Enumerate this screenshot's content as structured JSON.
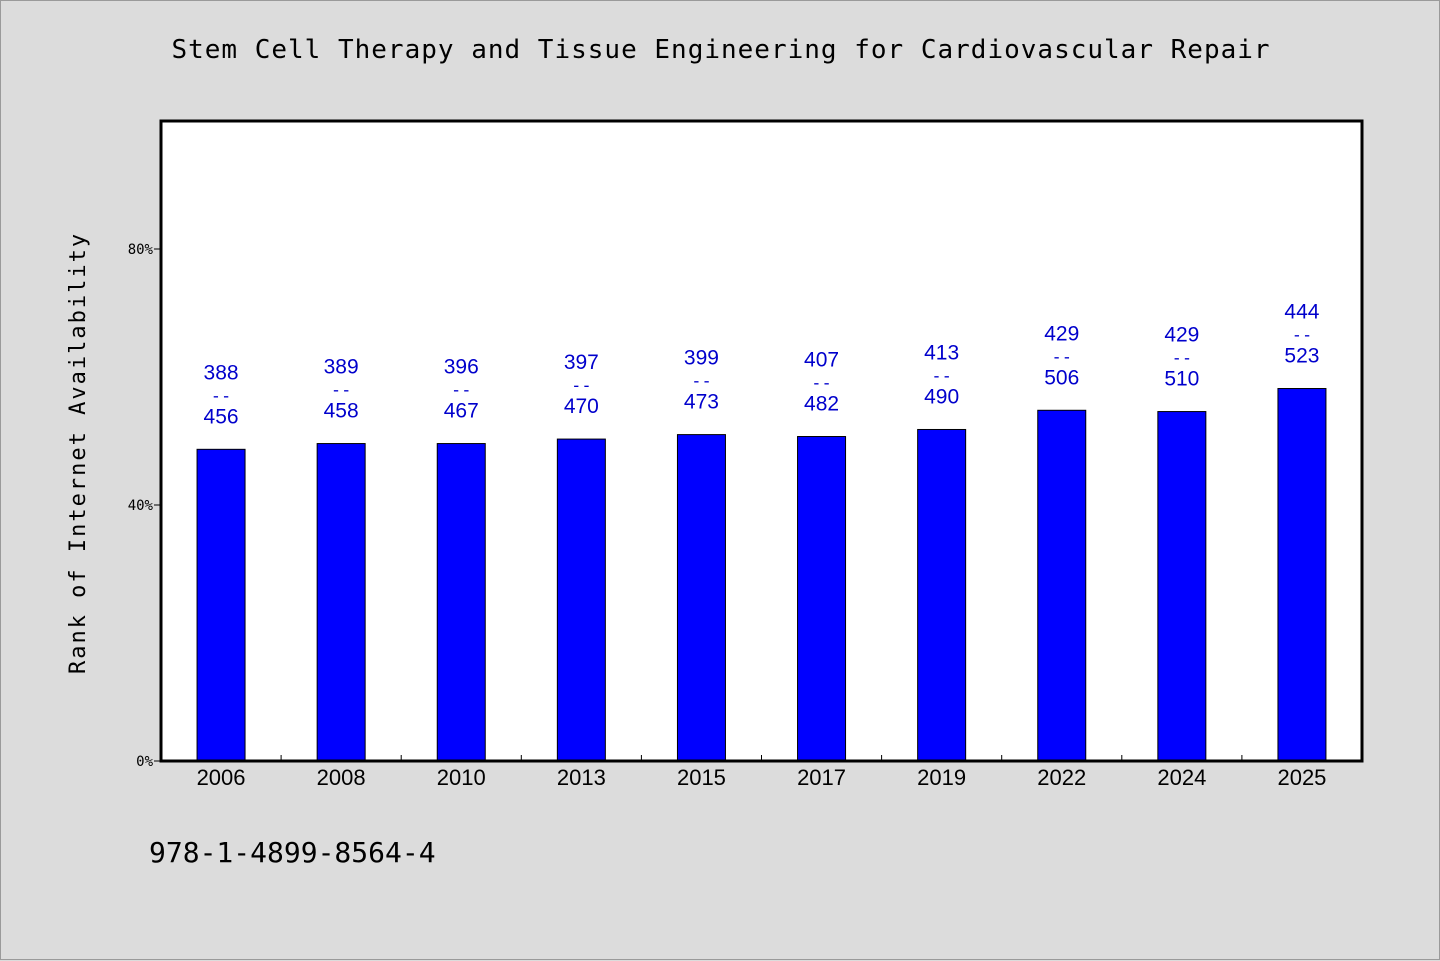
{
  "chart_data": {
    "type": "bar",
    "title": "Stem Cell Therapy and Tissue Engineering for Cardiovascular Repair",
    "xlabel": "",
    "ylabel": "Rank of Internet Availability",
    "ylim": [
      0,
      100
    ],
    "yticks": [
      0,
      40,
      80
    ],
    "ytick_labels": [
      "0%",
      "40%",
      "80%"
    ],
    "categories": [
      "2006",
      "2008",
      "2010",
      "2013",
      "2015",
      "2017",
      "2019",
      "2022",
      "2024",
      "2025"
    ],
    "values": [
      48.7,
      49.6,
      49.6,
      50.3,
      51.0,
      50.7,
      51.8,
      54.8,
      54.6,
      58.2
    ],
    "data_labels": [
      {
        "top": "388",
        "sep": "--",
        "bottom": "456"
      },
      {
        "top": "389",
        "sep": "--",
        "bottom": "458"
      },
      {
        "top": "396",
        "sep": "--",
        "bottom": "467"
      },
      {
        "top": "397",
        "sep": "--",
        "bottom": "470"
      },
      {
        "top": "399",
        "sep": "--",
        "bottom": "473"
      },
      {
        "top": "407",
        "sep": "--",
        "bottom": "482"
      },
      {
        "top": "413",
        "sep": "--",
        "bottom": "490"
      },
      {
        "top": "429",
        "sep": "--",
        "bottom": "506"
      },
      {
        "top": "429",
        "sep": "--",
        "bottom": "510"
      },
      {
        "top": "444",
        "sep": "--",
        "bottom": "523"
      }
    ],
    "bar_color": "#0000ff",
    "label_color": "#0000cc",
    "grid": false
  },
  "footer": {
    "code": "978-1-4899-8564-4"
  }
}
